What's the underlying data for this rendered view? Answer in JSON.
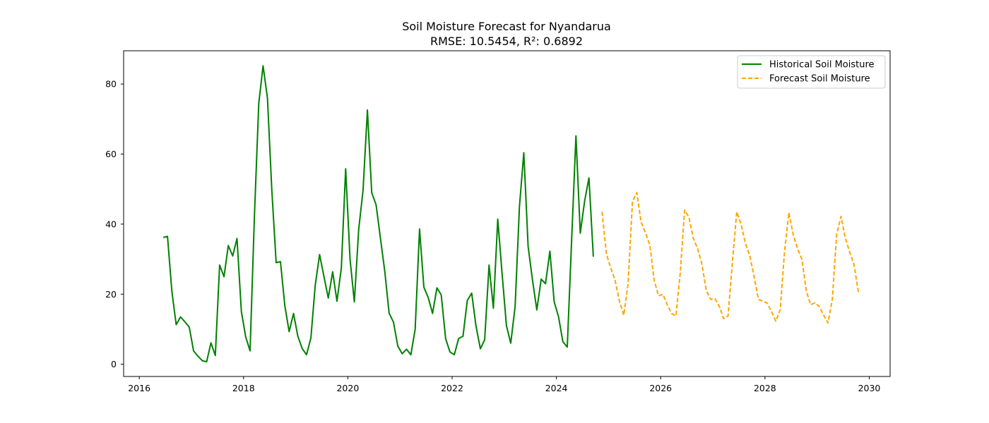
{
  "chart_data": {
    "type": "line",
    "title": "Soil Moisture Forecast for Nyandarua",
    "subtitle": "RMSE: 10.5454, R²: 0.6892",
    "xlabel": "",
    "ylabel": "",
    "xlim": [
      2015.7,
      2030.4
    ],
    "ylim": [
      -3.5,
      89.5
    ],
    "x_ticks": [
      2016,
      2018,
      2020,
      2022,
      2024,
      2026,
      2028,
      2030
    ],
    "y_ticks": [
      0,
      20,
      40,
      60,
      80
    ],
    "grid": false,
    "legend_position": "top-right",
    "series": [
      {
        "name": "Historical Soil Moisture",
        "color": "#008000",
        "style": "solid",
        "x": [
          "2016-06",
          "2016-07",
          "2016-08",
          "2016-09",
          "2016-10",
          "2016-11",
          "2016-12",
          "2017-01",
          "2017-02",
          "2017-03",
          "2017-04",
          "2017-05",
          "2017-06",
          "2017-07",
          "2017-08",
          "2017-09",
          "2017-10",
          "2017-11",
          "2017-12",
          "2018-01",
          "2018-02",
          "2018-03",
          "2018-04",
          "2018-05",
          "2018-06",
          "2018-07",
          "2018-08",
          "2018-09",
          "2018-10",
          "2018-11",
          "2018-12",
          "2019-01",
          "2019-02",
          "2019-03",
          "2019-04",
          "2019-05",
          "2019-06",
          "2019-07",
          "2019-08",
          "2019-09",
          "2019-10",
          "2019-11",
          "2019-12",
          "2020-01",
          "2020-02",
          "2020-03",
          "2020-04",
          "2020-05",
          "2020-06",
          "2020-07",
          "2020-08",
          "2020-09",
          "2020-10",
          "2020-11",
          "2020-12",
          "2021-01",
          "2021-02",
          "2021-03",
          "2021-04",
          "2021-05",
          "2021-06",
          "2021-07",
          "2021-08",
          "2021-09",
          "2021-10",
          "2021-11",
          "2021-12",
          "2022-01",
          "2022-02",
          "2022-03",
          "2022-04",
          "2022-05",
          "2022-06",
          "2022-07",
          "2022-08",
          "2022-09",
          "2022-10",
          "2022-11",
          "2022-12",
          "2023-01",
          "2023-02",
          "2023-03",
          "2023-04",
          "2023-05",
          "2023-06",
          "2023-07",
          "2023-08",
          "2023-09",
          "2023-10",
          "2023-11",
          "2023-12",
          "2024-01",
          "2024-02",
          "2024-03",
          "2024-04",
          "2024-05",
          "2024-06",
          "2024-07",
          "2024-08",
          "2024-09"
        ],
        "values": [
          36.2,
          36.5,
          20.8,
          11.3,
          13.5,
          12.1,
          10.6,
          3.8,
          2.3,
          1.0,
          0.7,
          6.1,
          2.5,
          28.3,
          25.0,
          33.9,
          30.9,
          35.9,
          15.0,
          7.8,
          3.8,
          42.0,
          74.5,
          85.2,
          76.0,
          50.0,
          29.0,
          29.3,
          16.7,
          9.3,
          14.5,
          8.0,
          4.5,
          2.7,
          7.5,
          22.5,
          31.3,
          25.0,
          18.9,
          26.4,
          18.0,
          27.5,
          55.8,
          30.0,
          17.8,
          38.6,
          49.6,
          72.6,
          49.0,
          45.5,
          36.0,
          26.5,
          14.6,
          12.0,
          5.2,
          3.0,
          4.3,
          2.7,
          10.0,
          38.6,
          22.0,
          19.0,
          14.5,
          21.8,
          19.8,
          7.3,
          3.5,
          2.7,
          7.3,
          8.0,
          18.2,
          20.3,
          10.9,
          4.4,
          7.0,
          28.3,
          16.0,
          41.4,
          26.0,
          11.0,
          6.0,
          16.5,
          45.0,
          60.4,
          33.6,
          24.0,
          15.5,
          24.3,
          23.0,
          32.3,
          17.8,
          13.5,
          6.4,
          4.9,
          35.0,
          65.2,
          37.4,
          46.6,
          53.2,
          30.7
        ]
      },
      {
        "name": "Forecast Soil Moisture",
        "color": "#FFA500",
        "style": "dashed",
        "x": [
          "2024-11",
          "2024-12",
          "2025-01",
          "2025-02",
          "2025-03",
          "2025-04",
          "2025-05",
          "2025-06",
          "2025-07",
          "2025-08",
          "2025-09",
          "2025-10",
          "2025-11",
          "2025-12",
          "2026-01",
          "2026-02",
          "2026-03",
          "2026-04",
          "2026-05",
          "2026-06",
          "2026-07",
          "2026-08",
          "2026-09",
          "2026-10",
          "2026-11",
          "2026-12",
          "2027-01",
          "2027-02",
          "2027-03",
          "2027-04",
          "2027-05",
          "2027-06",
          "2027-07",
          "2027-08",
          "2027-09",
          "2027-10",
          "2027-11",
          "2027-12",
          "2028-01",
          "2028-02",
          "2028-03",
          "2028-04",
          "2028-05",
          "2028-06",
          "2028-07",
          "2028-08",
          "2028-09",
          "2028-10",
          "2028-11",
          "2028-12",
          "2029-01",
          "2029-02",
          "2029-03",
          "2029-04",
          "2029-05",
          "2029-06",
          "2029-07",
          "2029-08",
          "2029-09",
          "2029-10"
        ],
        "values": [
          43.5,
          31.5,
          27.5,
          24.0,
          18.0,
          14.0,
          23.0,
          46.5,
          49.0,
          40.5,
          37.5,
          34.0,
          24.0,
          19.5,
          20.0,
          17.0,
          14.5,
          13.8,
          26.0,
          44.0,
          42.0,
          36.0,
          33.0,
          28.5,
          21.0,
          18.5,
          18.7,
          16.5,
          13.0,
          13.8,
          29.0,
          43.5,
          40.0,
          34.5,
          31.0,
          25.0,
          18.5,
          18.0,
          17.5,
          15.0,
          12.3,
          15.5,
          32.0,
          43.3,
          37.0,
          33.0,
          30.0,
          21.0,
          17.0,
          17.5,
          16.5,
          14.0,
          11.8,
          18.5,
          37.0,
          42.2,
          36.0,
          32.0,
          28.5,
          20.5
        ]
      }
    ]
  }
}
